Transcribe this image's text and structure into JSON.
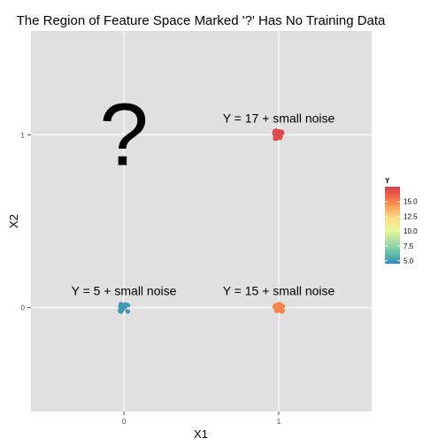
{
  "chart_data": {
    "type": "scatter",
    "title": "The Region of Feature Space Marked '?' Has No Training Data",
    "xlabel": "X1",
    "ylabel": "X2",
    "xlim": [
      -0.6,
      1.6
    ],
    "ylim": [
      -0.6,
      1.6
    ],
    "x_ticks": [
      {
        "value": 0,
        "label": "0"
      },
      {
        "value": 1,
        "label": "1"
      }
    ],
    "y_ticks": [
      {
        "value": 0,
        "label": "0"
      },
      {
        "value": 1,
        "label": "1"
      }
    ],
    "grid": true,
    "clusters": [
      {
        "x": 0,
        "y": 0,
        "y_value": 5,
        "label": "Y = 5 + small noise"
      },
      {
        "x": 1,
        "y": 0,
        "y_value": 15,
        "label": "Y = 15 + small noise"
      },
      {
        "x": 1,
        "y": 1,
        "y_value": 17,
        "label": "Y = 17 + small noise"
      }
    ],
    "empty_region": {
      "x": 0,
      "y": 1,
      "label": "?"
    },
    "legend": {
      "title": "Y",
      "placement": "right",
      "range": [
        4.5,
        17.5
      ],
      "ticks": [
        {
          "value": 5,
          "label": "5.0"
        },
        {
          "value": 7.5,
          "label": "7.5"
        },
        {
          "value": 10,
          "label": "10.0"
        },
        {
          "value": 12.5,
          "label": "12.5"
        },
        {
          "value": 15,
          "label": "15.0"
        }
      ],
      "colors": [
        "#3288bd",
        "#66c2a5",
        "#abdda4",
        "#e6f598",
        "#fee08b",
        "#fdae61",
        "#f46d43",
        "#d53e4f"
      ]
    }
  },
  "colors": {
    "panel_background": "#e0e0e0",
    "grid_major": "#ffffff"
  }
}
